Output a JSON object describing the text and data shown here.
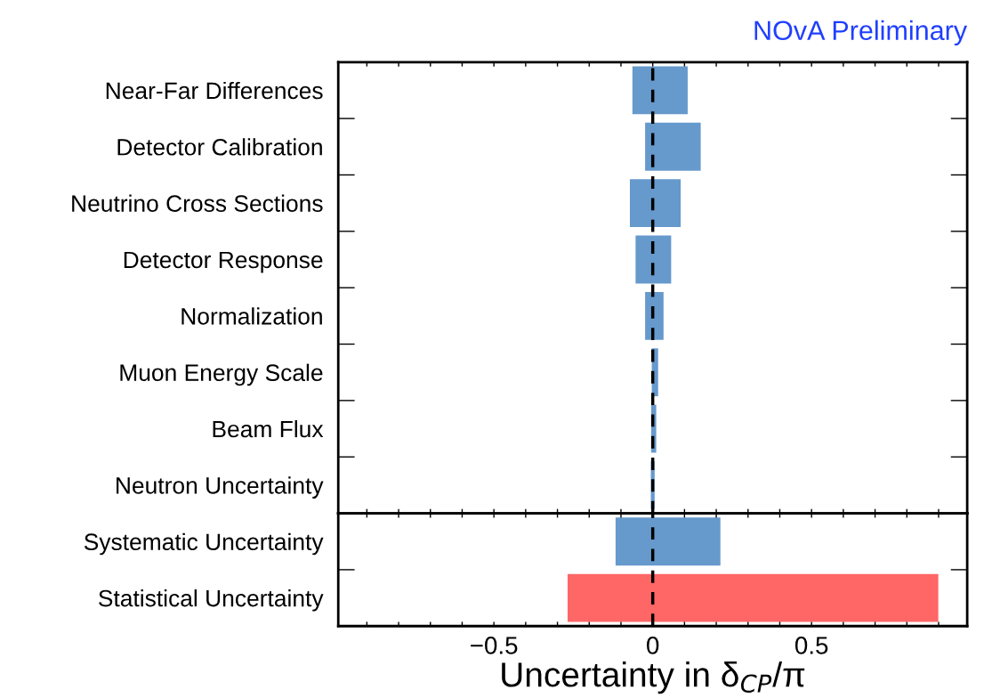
{
  "chart_data": [
    {
      "type": "bar",
      "orientation": "horizontal",
      "title": "NOvA Preliminary",
      "categories": [
        "Near-Far Differences",
        "Detector Calibration",
        "Neutrino Cross Sections",
        "Detector Response",
        "Normalization",
        "Muon Energy Scale",
        "Beam Flux",
        "Neutron Uncertainty"
      ],
      "base": [
        -0.064,
        -0.024,
        -0.072,
        -0.054,
        -0.024,
        -0.003,
        -0.005,
        -0.006
      ],
      "values": [
        0.174,
        0.175,
        0.16,
        0.112,
        0.058,
        0.02,
        0.016,
        0.012
      ],
      "colors": [
        "#6699cc",
        "#6699cc",
        "#6699cc",
        "#6699cc",
        "#6699cc",
        "#6699cc",
        "#6699cc",
        "#6699cc"
      ],
      "xlim": [
        -0.99,
        0.99
      ],
      "xticks": [
        {
          "value": -0.9,
          "label": null
        },
        {
          "value": -0.8,
          "label": null
        },
        {
          "value": -0.7,
          "label": null
        },
        {
          "value": -0.6,
          "label": null
        },
        {
          "value": -0.5,
          "label": null
        },
        {
          "value": -0.4,
          "label": null
        },
        {
          "value": -0.3,
          "label": null
        },
        {
          "value": -0.2,
          "label": null
        },
        {
          "value": -0.1,
          "label": null
        },
        {
          "value": 0,
          "label": null
        },
        {
          "value": 0.1,
          "label": null
        },
        {
          "value": 0.2,
          "label": null
        },
        {
          "value": 0.3,
          "label": null
        },
        {
          "value": 0.4,
          "label": null
        },
        {
          "value": 0.5,
          "label": null
        },
        {
          "value": 0.6,
          "label": null
        },
        {
          "value": 0.7,
          "label": null
        },
        {
          "value": 0.8,
          "label": null
        },
        {
          "value": 0.9,
          "label": null
        }
      ],
      "tick_labels": "y",
      "ref_lines": [
        {
          "axis": "x",
          "value": 0,
          "line_style": "dashed",
          "color": "#000000"
        }
      ],
      "grid": false,
      "legend": false
    },
    {
      "type": "bar",
      "orientation": "horizontal",
      "xlabel": "Uncertainty in δ$_{CP}$/π",
      "categories": [
        "Systematic Uncertainty",
        "Statistical Uncertainty"
      ],
      "base": [
        -0.117,
        -0.268
      ],
      "values": [
        0.33,
        1.167
      ],
      "colors": [
        "#6699cc",
        "#ff6666"
      ],
      "xlim": [
        -0.99,
        0.99
      ],
      "xticks": [
        {
          "value": -0.9,
          "label": null
        },
        {
          "value": -0.8,
          "label": null
        },
        {
          "value": -0.7,
          "label": null
        },
        {
          "value": -0.6,
          "label": null
        },
        {
          "value": -0.5,
          "label": "−0.5"
        },
        {
          "value": -0.4,
          "label": null
        },
        {
          "value": -0.3,
          "label": null
        },
        {
          "value": -0.2,
          "label": null
        },
        {
          "value": -0.1,
          "label": null
        },
        0,
        {
          "value": 0.1,
          "label": null
        },
        {
          "value": 0.2,
          "label": null
        },
        {
          "value": 0.3,
          "label": null
        },
        {
          "value": 0.4,
          "label": null
        },
        0.5,
        {
          "value": 0.6,
          "label": null
        },
        {
          "value": 0.7,
          "label": null
        },
        {
          "value": 0.8,
          "label": null
        },
        {
          "value": 0.9,
          "label": null
        }
      ],
      "ref_lines": [
        {
          "axis": "x",
          "value": 0,
          "line_style": "dashed",
          "color": "#000000"
        }
      ],
      "grid": false,
      "legend": false
    }
  ]
}
